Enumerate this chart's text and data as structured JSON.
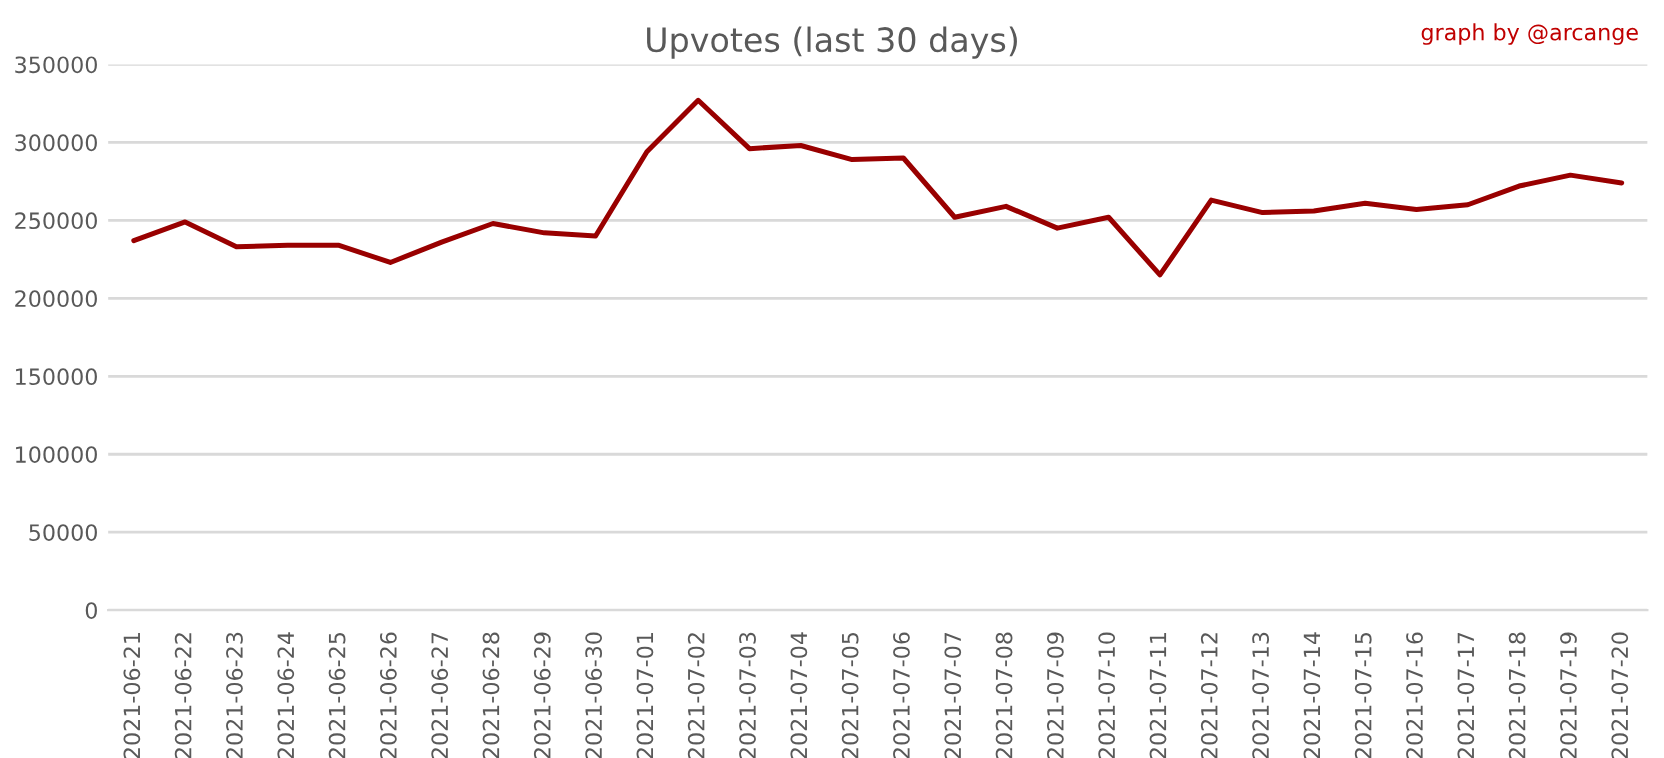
{
  "chart_data": {
    "type": "line",
    "title": "Upvotes (last 30 days)",
    "annotations": [
      "graph by @arcange"
    ],
    "categories": [
      "2021-06-21",
      "2021-06-22",
      "2021-06-23",
      "2021-06-24",
      "2021-06-25",
      "2021-06-26",
      "2021-06-27",
      "2021-06-28",
      "2021-06-29",
      "2021-06-30",
      "2021-07-01",
      "2021-07-02",
      "2021-07-03",
      "2021-07-04",
      "2021-07-05",
      "2021-07-06",
      "2021-07-07",
      "2021-07-08",
      "2021-07-09",
      "2021-07-10",
      "2021-07-11",
      "2021-07-12",
      "2021-07-13",
      "2021-07-14",
      "2021-07-15",
      "2021-07-16",
      "2021-07-17",
      "2021-07-18",
      "2021-07-19",
      "2021-07-20"
    ],
    "series": [
      {
        "color": "#990000",
        "values": [
          237000,
          249000,
          233000,
          234000,
          234000,
          223000,
          236000,
          248000,
          242000,
          240000,
          294000,
          327000,
          296000,
          298000,
          289000,
          290000,
          252000,
          259000,
          245000,
          252000,
          215000,
          263000,
          255000,
          256000,
          261000,
          257000,
          260000,
          272000,
          279000,
          274000
        ]
      }
    ],
    "ylim": [
      0,
      350000
    ],
    "yticks": [
      0,
      50000,
      100000,
      150000,
      200000,
      250000,
      300000,
      350000
    ],
    "grid": "y",
    "legend": false,
    "marker": "none",
    "line_style": "solid"
  }
}
